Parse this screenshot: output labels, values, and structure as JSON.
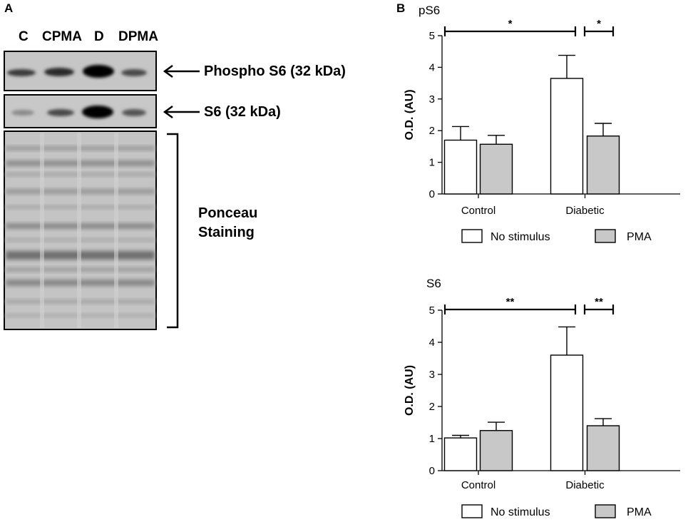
{
  "panel_a": {
    "letter": "A",
    "lanes": [
      "C",
      "CPMA",
      "D",
      "DPMA"
    ],
    "phospho_label": "Phospho S6 (32 kDa)",
    "s6_label": "S6 (32 kDa)",
    "ponceau_label_line1": "Ponceau",
    "ponceau_label_line2": "Staining"
  },
  "panel_b": {
    "letter": "B"
  },
  "colors": {
    "no_stimulus": "#ffffff",
    "pma": "#c8c8c8",
    "axis": "#000000"
  },
  "chart_data": [
    {
      "type": "bar",
      "title": "pS6",
      "ylabel": "O.D. (AU)",
      "xlabel": "",
      "ylim": [
        0,
        5
      ],
      "yticks": [
        "0",
        "1",
        "2",
        "3",
        "4",
        "5"
      ],
      "categories": [
        "Control",
        "Diabetic"
      ],
      "series": [
        {
          "name": "No stimulus",
          "values": [
            1.7,
            3.65
          ],
          "errors": [
            0.43,
            0.73
          ]
        },
        {
          "name": "PMA",
          "values": [
            1.57,
            1.83
          ],
          "errors": [
            0.28,
            0.4
          ]
        }
      ],
      "significance": [
        {
          "label": "*",
          "from": "Control",
          "to": "Diabetic"
        },
        {
          "label": "*",
          "from": "Diabetic",
          "to": "Diabetic PMA"
        }
      ],
      "legend": {
        "position": "bottom",
        "entries": [
          "No stimulus",
          "PMA"
        ]
      }
    },
    {
      "type": "bar",
      "title": "S6",
      "ylabel": "O.D. (AU)",
      "xlabel": "",
      "ylim": [
        0,
        5
      ],
      "yticks": [
        "0",
        "1",
        "2",
        "3",
        "4",
        "5"
      ],
      "categories": [
        "Control",
        "Diabetic"
      ],
      "series": [
        {
          "name": "No stimulus",
          "values": [
            1.02,
            3.6
          ],
          "errors": [
            0.08,
            0.88
          ]
        },
        {
          "name": "PMA",
          "values": [
            1.25,
            1.4
          ],
          "errors": [
            0.26,
            0.22
          ]
        }
      ],
      "significance": [
        {
          "label": "**",
          "from": "Control",
          "to": "Diabetic"
        },
        {
          "label": "**",
          "from": "Diabetic",
          "to": "Diabetic PMA"
        }
      ],
      "legend": {
        "position": "bottom",
        "entries": [
          "No stimulus",
          "PMA"
        ]
      }
    }
  ]
}
